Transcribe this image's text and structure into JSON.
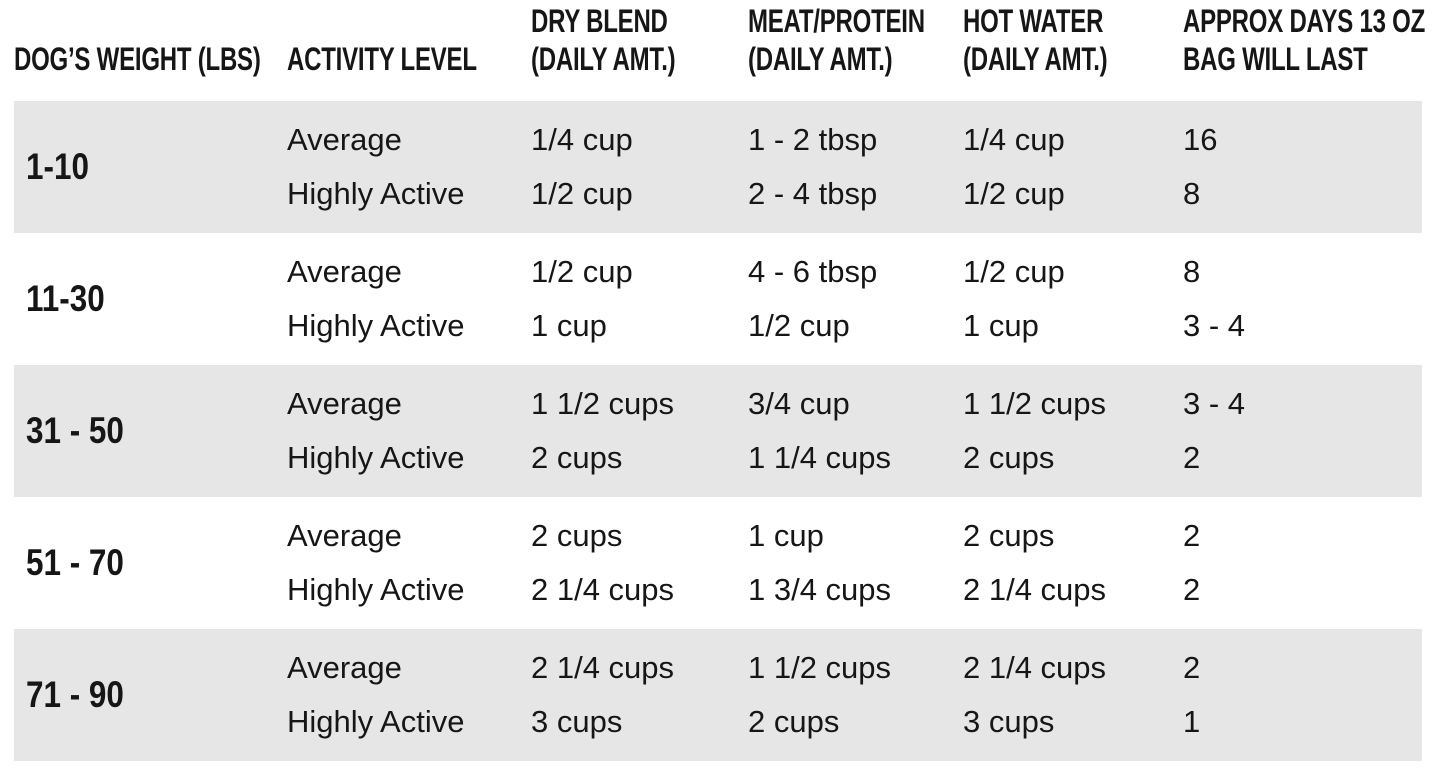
{
  "colors": {
    "stripe": "#e6e6e6",
    "background": "#ffffff",
    "text": "#161616"
  },
  "table": {
    "headers": {
      "weight": "DOG’S WEIGHT (LBS)",
      "activity": "ACTIVITY LEVEL",
      "dry_blend_line1": "DRY BLEND",
      "dry_blend_line2": "(DAILY AMT.)",
      "meat_line1": "MEAT/PROTEIN",
      "meat_line2": "(DAILY AMT.)",
      "water_line1": "HOT WATER",
      "water_line2": "(DAILY AMT.)",
      "days_line1": "APPROX DAYS 13 OZ",
      "days_line2": "BAG WILL LAST"
    },
    "rows": [
      {
        "weight": "1-10",
        "entries": [
          {
            "activity": "Average",
            "dry_blend": "1/4 cup",
            "meat_protein": "1 - 2 tbsp",
            "hot_water": "1/4 cup",
            "days": "16"
          },
          {
            "activity": "Highly Active",
            "dry_blend": "1/2 cup",
            "meat_protein": "2 - 4 tbsp",
            "hot_water": "1/2 cup",
            "days": "8"
          }
        ]
      },
      {
        "weight": "11-30",
        "entries": [
          {
            "activity": "Average",
            "dry_blend": "1/2 cup",
            "meat_protein": "4 - 6 tbsp",
            "hot_water": "1/2 cup",
            "days": "8"
          },
          {
            "activity": "Highly Active",
            "dry_blend": "1 cup",
            "meat_protein": "1/2 cup",
            "hot_water": "1 cup",
            "days": "3 - 4"
          }
        ]
      },
      {
        "weight": "31 - 50",
        "entries": [
          {
            "activity": "Average",
            "dry_blend": "1 1/2 cups",
            "meat_protein": "3/4 cup",
            "hot_water": "1 1/2 cups",
            "days": "3 - 4"
          },
          {
            "activity": "Highly Active",
            "dry_blend": "2 cups",
            "meat_protein": "1 1/4 cups",
            "hot_water": "2 cups",
            "days": "2"
          }
        ]
      },
      {
        "weight": "51 - 70",
        "entries": [
          {
            "activity": "Average",
            "dry_blend": "2 cups",
            "meat_protein": "1 cup",
            "hot_water": "2 cups",
            "days": "2"
          },
          {
            "activity": "Highly Active",
            "dry_blend": "2 1/4 cups",
            "meat_protein": "1 3/4 cups",
            "hot_water": "2 1/4 cups",
            "days": "2"
          }
        ]
      },
      {
        "weight": "71 - 90",
        "entries": [
          {
            "activity": "Average",
            "dry_blend": "2 1/4 cups",
            "meat_protein": "1 1/2 cups",
            "hot_water": "2 1/4 cups",
            "days": "2"
          },
          {
            "activity": "Highly Active",
            "dry_blend": "3 cups",
            "meat_protein": "2 cups",
            "hot_water": "3 cups",
            "days": "1"
          }
        ]
      }
    ]
  },
  "chart_data": {
    "type": "table",
    "title": "Dog feeding guide",
    "columns": [
      "DOG’S WEIGHT (LBS)",
      "ACTIVITY LEVEL",
      "DRY BLEND (DAILY AMT.)",
      "MEAT/PROTEIN (DAILY AMT.)",
      "HOT WATER (DAILY AMT.)",
      "APPROX DAYS 13 OZ BAG WILL LAST"
    ],
    "rows": [
      [
        "1-10",
        "Average",
        "1/4 cup",
        "1 - 2 tbsp",
        "1/4 cup",
        "16"
      ],
      [
        "1-10",
        "Highly Active",
        "1/2 cup",
        "2 - 4 tbsp",
        "1/2 cup",
        "8"
      ],
      [
        "11-30",
        "Average",
        "1/2 cup",
        "4 - 6 tbsp",
        "1/2 cup",
        "8"
      ],
      [
        "11-30",
        "Highly Active",
        "1 cup",
        "1/2 cup",
        "1 cup",
        "3 - 4"
      ],
      [
        "31 - 50",
        "Average",
        "1 1/2 cups",
        "3/4 cup",
        "1 1/2 cups",
        "3 - 4"
      ],
      [
        "31 - 50",
        "Highly Active",
        "2 cups",
        "1 1/4 cups",
        "2 cups",
        "2"
      ],
      [
        "51 - 70",
        "Average",
        "2 cups",
        "1 cup",
        "2 cups",
        "2"
      ],
      [
        "51 - 70",
        "Highly Active",
        "2 1/4 cups",
        "1 3/4 cups",
        "2 1/4 cups",
        "2"
      ],
      [
        "71 - 90",
        "Average",
        "2 1/4 cups",
        "1 1/2 cups",
        "2 1/4 cups",
        "2"
      ],
      [
        "71 - 90",
        "Highly Active",
        "3 cups",
        "2 cups",
        "3 cups",
        "1"
      ]
    ],
    "layout": {
      "striped": true,
      "stripe_rows": "odd weight groups",
      "header_position": "top"
    }
  }
}
